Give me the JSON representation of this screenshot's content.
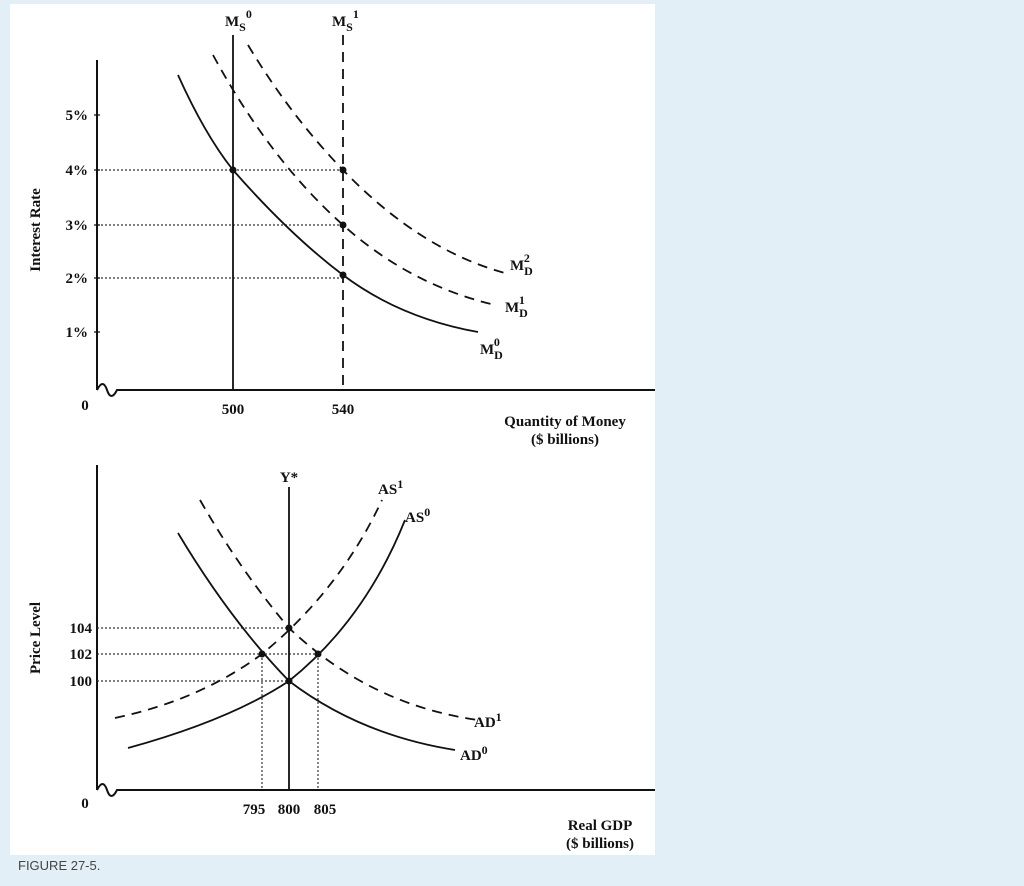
{
  "money_market": {
    "y_axis_title": "Interest Rate",
    "x_axis_title": [
      "Quantity of Money",
      "($ billions)"
    ],
    "y_ticks": [
      "5%",
      "4%",
      "3%",
      "2%",
      "1%"
    ],
    "origin": "0",
    "x_ticks": [
      "500",
      "540"
    ],
    "ms0": {
      "base": "M",
      "sub": "S",
      "sup": "0"
    },
    "ms1": {
      "base": "M",
      "sub": "S",
      "sup": "1"
    },
    "md0": {
      "base": "M",
      "sub": "D",
      "sup": "0"
    },
    "md1": {
      "base": "M",
      "sub": "D",
      "sup": "1"
    },
    "md2": {
      "base": "M",
      "sub": "D",
      "sup": "2"
    }
  },
  "goods_market": {
    "y_axis_title": "Price Level",
    "x_axis_title": [
      "Real GDP",
      "($ billions)"
    ],
    "y_ticks": [
      "104",
      "102",
      "100"
    ],
    "origin": "0",
    "x_ticks": [
      "795",
      "800",
      "805"
    ],
    "potential": "Y*",
    "as0": {
      "base": "AS",
      "sup": "0"
    },
    "as1": {
      "base": "AS",
      "sup": "1"
    },
    "ad0": {
      "base": "AD",
      "sup": "0"
    },
    "ad1": {
      "base": "AD",
      "sup": "1"
    }
  },
  "caption": "FIGURE 27-5."
}
